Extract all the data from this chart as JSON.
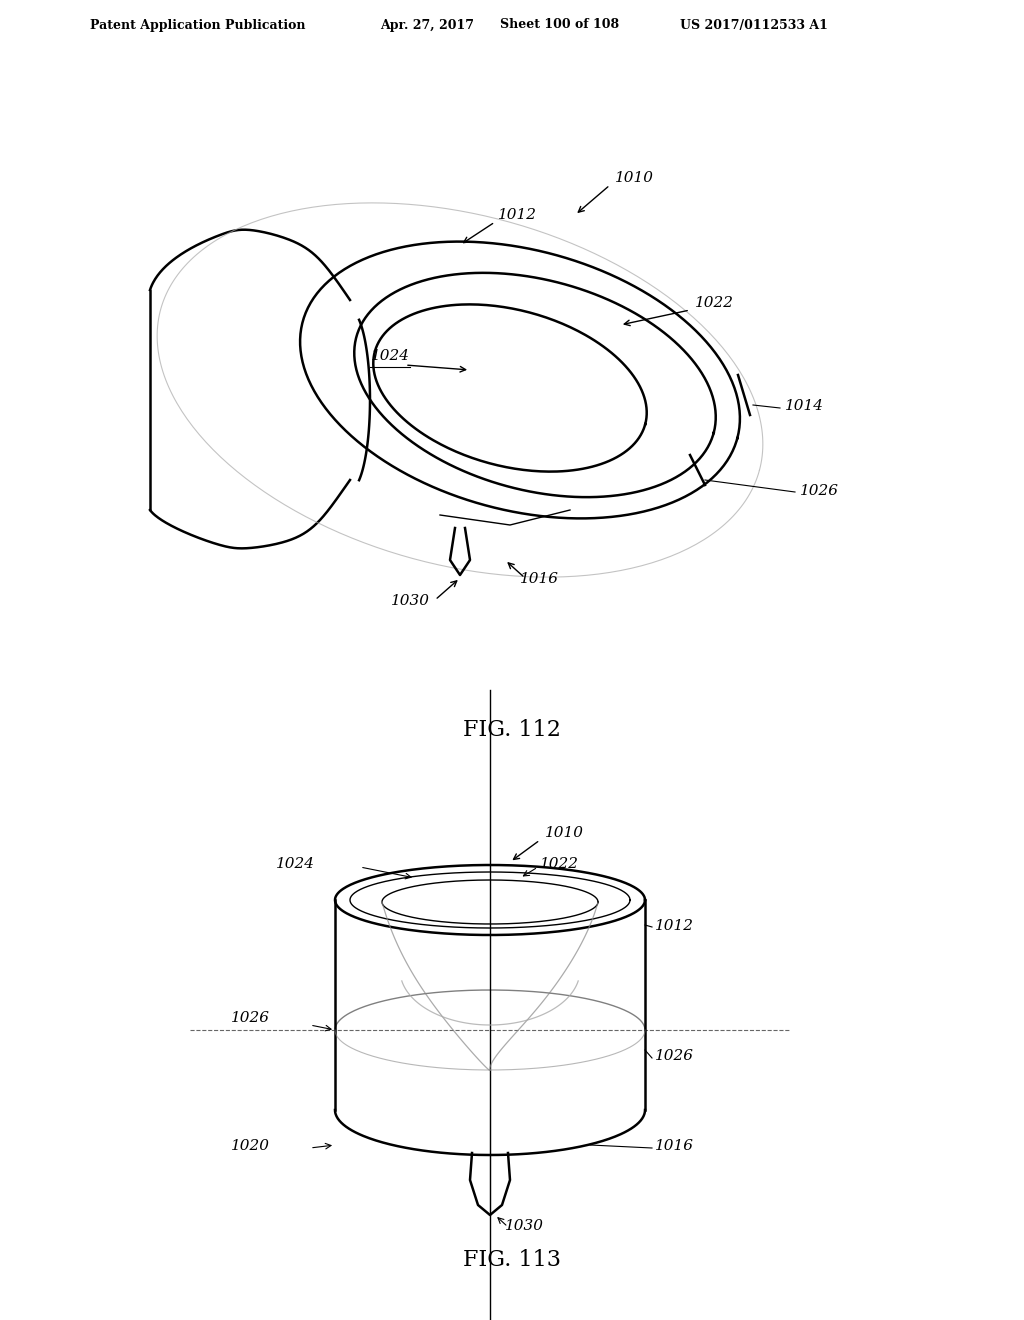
{
  "bg_color": "#ffffff",
  "header_text": "Patent Application Publication",
  "header_date": "Apr. 27, 2017",
  "header_sheet": "Sheet 100 of 108",
  "header_patent": "US 2017/0112533 A1",
  "fig112_label": "FIG. 112",
  "fig113_label": "FIG. 113",
  "line_color": "#000000",
  "label_color": "#000000",
  "light_line_color": "#aaaaaa"
}
